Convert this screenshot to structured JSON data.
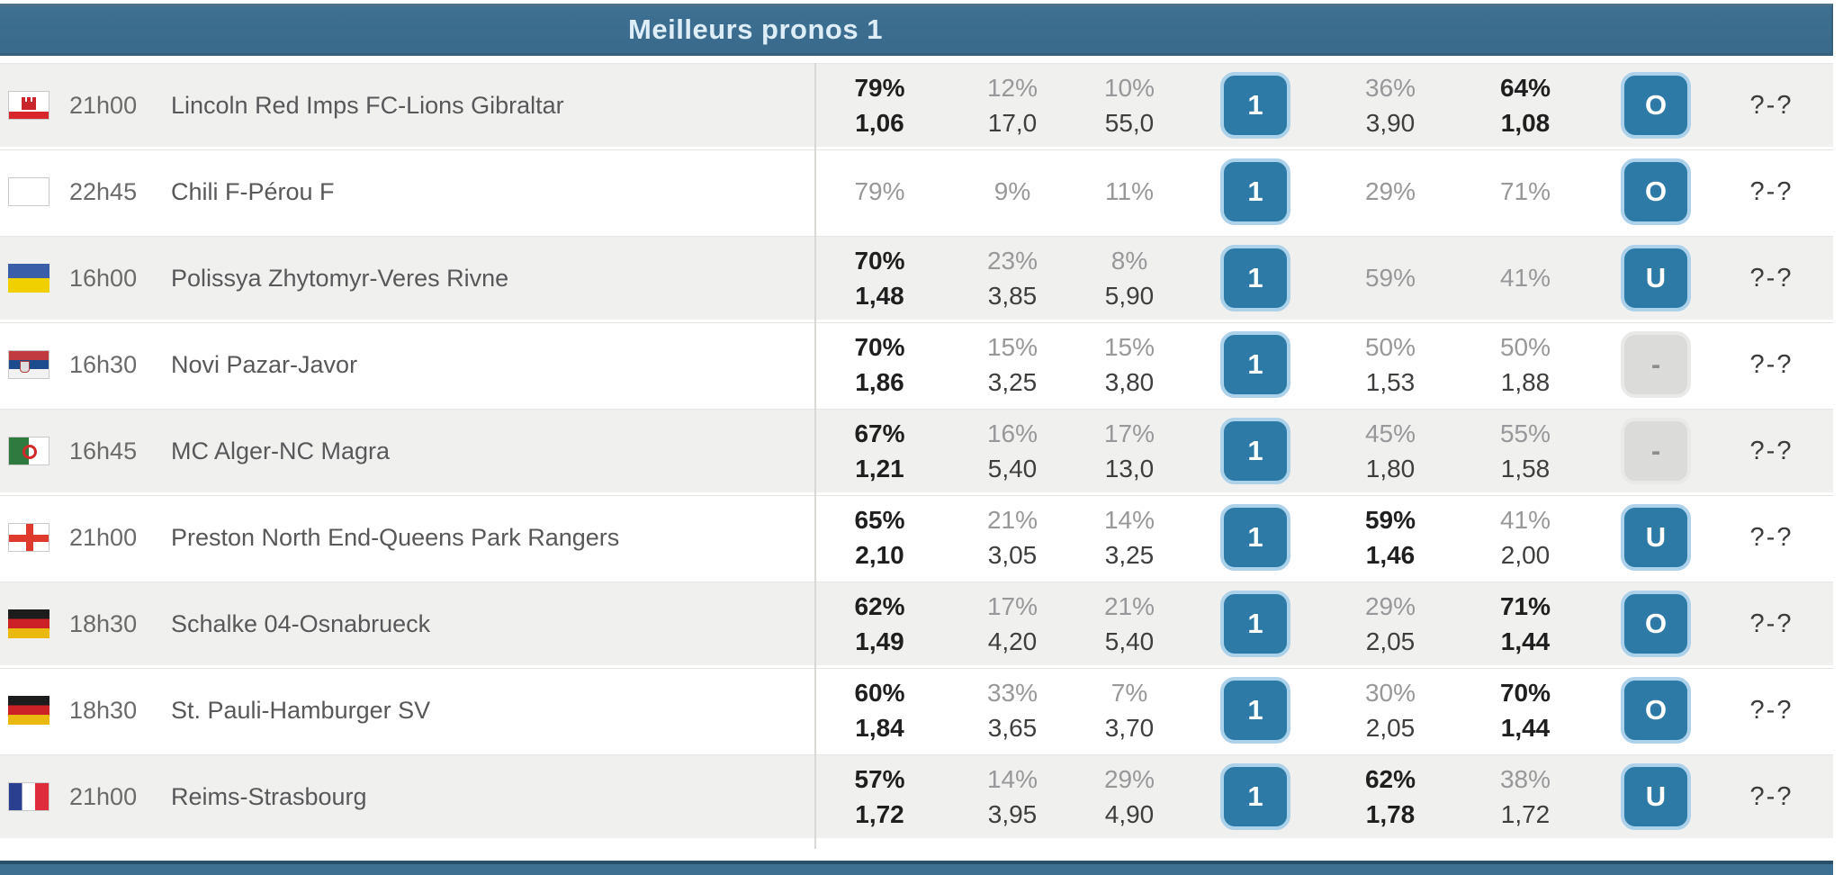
{
  "header": {
    "title": "Meilleurs pronos 1"
  },
  "colors": {
    "header_bar": "#3e7092",
    "header_bar_deep": "#3a6a8b",
    "title_text": "#ddeef9",
    "button_blue": "#2d7aa6",
    "button_blue_border": "#abd2ea",
    "row_stripe": "#f0f0ee",
    "text_dark": "#1f1f1f",
    "text_muted": "#98989a",
    "text_odd": "#3e3e3c"
  },
  "table": {
    "rows": [
      {
        "flag": "gibraltar",
        "time": "21h00",
        "match": "Lincoln Red Imps FC-Lions Gibraltar",
        "home": {
          "pct": "79%",
          "odd": "1,06",
          "fav": true
        },
        "draw": {
          "pct": "12%",
          "odd": "17,0",
          "fav": false
        },
        "away": {
          "pct": "10%",
          "odd": "55,0",
          "fav": false
        },
        "bet_1x2": {
          "label": "1",
          "style": "blue"
        },
        "under": {
          "pct": "36%",
          "odd": "3,90",
          "fav": false
        },
        "over": {
          "pct": "64%",
          "odd": "1,08",
          "fav": true
        },
        "bet_ou": {
          "label": "O",
          "style": "blue"
        },
        "score": "?-?"
      },
      {
        "flag": "blank",
        "time": "22h45",
        "match": "Chili F-Pérou F",
        "home": {
          "pct": "79%",
          "odd": null,
          "fav": false
        },
        "draw": {
          "pct": "9%",
          "odd": null,
          "fav": false
        },
        "away": {
          "pct": "11%",
          "odd": null,
          "fav": false
        },
        "bet_1x2": {
          "label": "1",
          "style": "blue"
        },
        "under": {
          "pct": "29%",
          "odd": null,
          "fav": false
        },
        "over": {
          "pct": "71%",
          "odd": null,
          "fav": false
        },
        "bet_ou": {
          "label": "O",
          "style": "blue"
        },
        "score": "?-?"
      },
      {
        "flag": "ukraine",
        "time": "16h00",
        "match": "Polissya Zhytomyr-Veres Rivne",
        "home": {
          "pct": "70%",
          "odd": "1,48",
          "fav": true
        },
        "draw": {
          "pct": "23%",
          "odd": "3,85",
          "fav": false
        },
        "away": {
          "pct": "8%",
          "odd": "5,90",
          "fav": false
        },
        "bet_1x2": {
          "label": "1",
          "style": "blue"
        },
        "under": {
          "pct": "59%",
          "odd": null,
          "fav": false
        },
        "over": {
          "pct": "41%",
          "odd": null,
          "fav": false
        },
        "bet_ou": {
          "label": "U",
          "style": "blue"
        },
        "score": "?-?"
      },
      {
        "flag": "serbia",
        "time": "16h30",
        "match": "Novi Pazar-Javor",
        "home": {
          "pct": "70%",
          "odd": "1,86",
          "fav": true
        },
        "draw": {
          "pct": "15%",
          "odd": "3,25",
          "fav": false
        },
        "away": {
          "pct": "15%",
          "odd": "3,80",
          "fav": false
        },
        "bet_1x2": {
          "label": "1",
          "style": "blue"
        },
        "under": {
          "pct": "50%",
          "odd": "1,53",
          "fav": false
        },
        "over": {
          "pct": "50%",
          "odd": "1,88",
          "fav": false
        },
        "bet_ou": {
          "label": "-",
          "style": "gray"
        },
        "score": "?-?"
      },
      {
        "flag": "algeria",
        "time": "16h45",
        "match": "MC Alger-NC Magra",
        "home": {
          "pct": "67%",
          "odd": "1,21",
          "fav": true
        },
        "draw": {
          "pct": "16%",
          "odd": "5,40",
          "fav": false
        },
        "away": {
          "pct": "17%",
          "odd": "13,0",
          "fav": false
        },
        "bet_1x2": {
          "label": "1",
          "style": "blue"
        },
        "under": {
          "pct": "45%",
          "odd": "1,80",
          "fav": false
        },
        "over": {
          "pct": "55%",
          "odd": "1,58",
          "fav": false
        },
        "bet_ou": {
          "label": "-",
          "style": "gray"
        },
        "score": "?-?"
      },
      {
        "flag": "england",
        "time": "21h00",
        "match": "Preston North End-Queens Park Rangers",
        "home": {
          "pct": "65%",
          "odd": "2,10",
          "fav": true
        },
        "draw": {
          "pct": "21%",
          "odd": "3,05",
          "fav": false
        },
        "away": {
          "pct": "14%",
          "odd": "3,25",
          "fav": false
        },
        "bet_1x2": {
          "label": "1",
          "style": "blue"
        },
        "under": {
          "pct": "59%",
          "odd": "1,46",
          "fav": true
        },
        "over": {
          "pct": "41%",
          "odd": "2,00",
          "fav": false
        },
        "bet_ou": {
          "label": "U",
          "style": "blue"
        },
        "score": "?-?"
      },
      {
        "flag": "germany",
        "time": "18h30",
        "match": "Schalke 04-Osnabrueck",
        "home": {
          "pct": "62%",
          "odd": "1,49",
          "fav": true
        },
        "draw": {
          "pct": "17%",
          "odd": "4,20",
          "fav": false
        },
        "away": {
          "pct": "21%",
          "odd": "5,40",
          "fav": false
        },
        "bet_1x2": {
          "label": "1",
          "style": "blue"
        },
        "under": {
          "pct": "29%",
          "odd": "2,05",
          "fav": false
        },
        "over": {
          "pct": "71%",
          "odd": "1,44",
          "fav": true
        },
        "bet_ou": {
          "label": "O",
          "style": "blue"
        },
        "score": "?-?"
      },
      {
        "flag": "germany",
        "time": "18h30",
        "match": "St. Pauli-Hamburger SV",
        "home": {
          "pct": "60%",
          "odd": "1,84",
          "fav": true
        },
        "draw": {
          "pct": "33%",
          "odd": "3,65",
          "fav": false
        },
        "away": {
          "pct": "7%",
          "odd": "3,70",
          "fav": false
        },
        "bet_1x2": {
          "label": "1",
          "style": "blue"
        },
        "under": {
          "pct": "30%",
          "odd": "2,05",
          "fav": false
        },
        "over": {
          "pct": "70%",
          "odd": "1,44",
          "fav": true
        },
        "bet_ou": {
          "label": "O",
          "style": "blue"
        },
        "score": "?-?"
      },
      {
        "flag": "france",
        "time": "21h00",
        "match": "Reims-Strasbourg",
        "home": {
          "pct": "57%",
          "odd": "1,72",
          "fav": true
        },
        "draw": {
          "pct": "14%",
          "odd": "3,95",
          "fav": false
        },
        "away": {
          "pct": "29%",
          "odd": "4,90",
          "fav": false
        },
        "bet_1x2": {
          "label": "1",
          "style": "blue"
        },
        "under": {
          "pct": "62%",
          "odd": "1,78",
          "fav": true
        },
        "over": {
          "pct": "38%",
          "odd": "1,72",
          "fav": false
        },
        "bet_ou": {
          "label": "U",
          "style": "blue"
        },
        "score": "?-?"
      }
    ]
  }
}
